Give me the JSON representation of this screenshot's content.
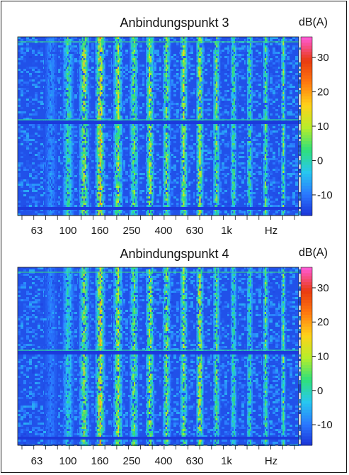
{
  "chart_data": [
    {
      "type": "heatmap",
      "title": "Anbindungspunkt 3",
      "unit_label": "dB(A)",
      "x_tick_labels": [
        "63",
        "100",
        "160",
        "250",
        "400",
        "630",
        "1k",
        "Hz"
      ],
      "colorbar_ticks": [
        30,
        20,
        10,
        0,
        -10
      ],
      "colorbar_range": [
        -16,
        36
      ],
      "x_scale": "log",
      "x_range_hz": [
        40,
        2000
      ],
      "grid": false,
      "legend": "colorbar-right",
      "band_centers_hz": [
        63,
        80,
        100,
        125,
        160,
        200,
        250,
        315,
        400,
        500,
        630,
        800,
        1000,
        1250,
        1600
      ],
      "band_peak_levels_db": [
        -6,
        6,
        14,
        20,
        14,
        10,
        14,
        12,
        14,
        16,
        12,
        8,
        8,
        10,
        8
      ],
      "background_level_db": -13
    },
    {
      "type": "heatmap",
      "title": "Anbindungspunkt 4",
      "unit_label": "dB(A)",
      "x_tick_labels": [
        "63",
        "100",
        "160",
        "250",
        "400",
        "630",
        "1k",
        "Hz"
      ],
      "colorbar_ticks": [
        30,
        20,
        10,
        0,
        -10
      ],
      "colorbar_range": [
        -16,
        36
      ],
      "x_scale": "log",
      "x_range_hz": [
        40,
        2000
      ],
      "grid": false,
      "legend": "colorbar-right",
      "band_centers_hz": [
        63,
        80,
        100,
        125,
        160,
        200,
        250,
        315,
        400,
        500,
        630,
        800,
        1000,
        1250,
        1600
      ],
      "band_peak_levels_db": [
        -8,
        2,
        12,
        18,
        14,
        10,
        14,
        12,
        12,
        16,
        10,
        6,
        6,
        10,
        8
      ],
      "background_level_db": -13
    }
  ],
  "colors": {
    "background": "#ffffff",
    "frame": "#1a1a1a",
    "colormap": [
      "#1a2fd6",
      "#2a78ff",
      "#28c7f0",
      "#2fe07a",
      "#b8ee2a",
      "#ffd21a",
      "#ff7a10",
      "#e83a10",
      "#ff5ad0"
    ]
  }
}
